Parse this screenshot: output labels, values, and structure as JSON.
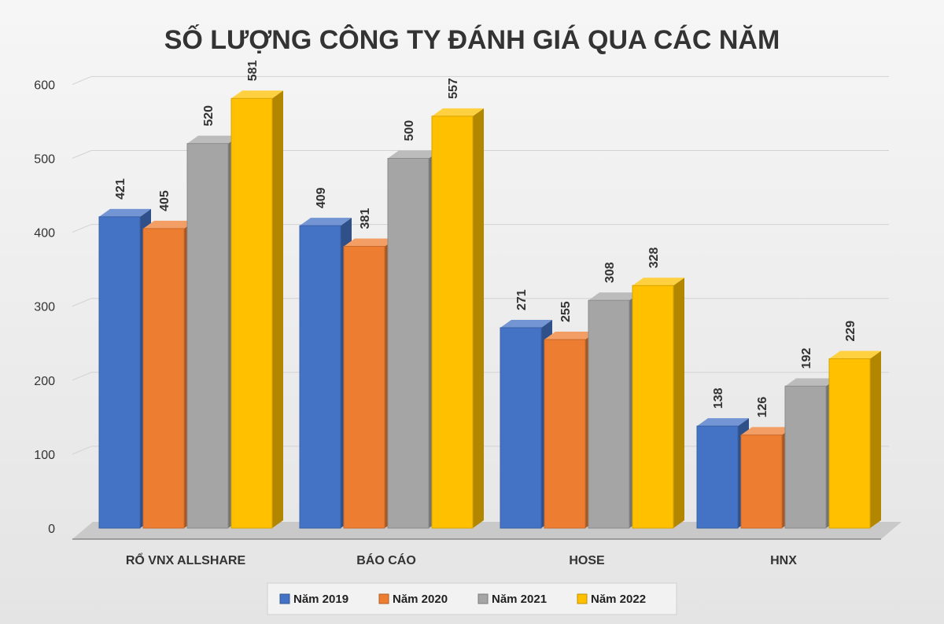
{
  "chart_data": {
    "type": "bar",
    "title": "SỐ LƯỢNG CÔNG TY ĐÁNH GIÁ QUA CÁC NĂM",
    "xlabel": "",
    "ylabel": "",
    "categories": [
      "RỔ VNX ALLSHARE",
      "BÁO CÁO",
      "HOSE",
      "HNX"
    ],
    "series": [
      {
        "name": "Năm 2019",
        "values": [
          421,
          409,
          271,
          138
        ],
        "color": "#4472c4"
      },
      {
        "name": "Năm 2020",
        "values": [
          405,
          381,
          255,
          126
        ],
        "color": "#ed7d31"
      },
      {
        "name": "Năm 2021",
        "values": [
          520,
          500,
          308,
          192
        ],
        "color": "#a5a5a5"
      },
      {
        "name": "Năm 2022",
        "values": [
          581,
          557,
          328,
          229
        ],
        "color": "#ffc000"
      }
    ],
    "ylim": [
      0,
      600
    ],
    "yticks": [
      "0",
      "100",
      "200",
      "300",
      "400",
      "500",
      "600"
    ],
    "grid": true,
    "style": "3d-column",
    "legend": "bottom"
  }
}
